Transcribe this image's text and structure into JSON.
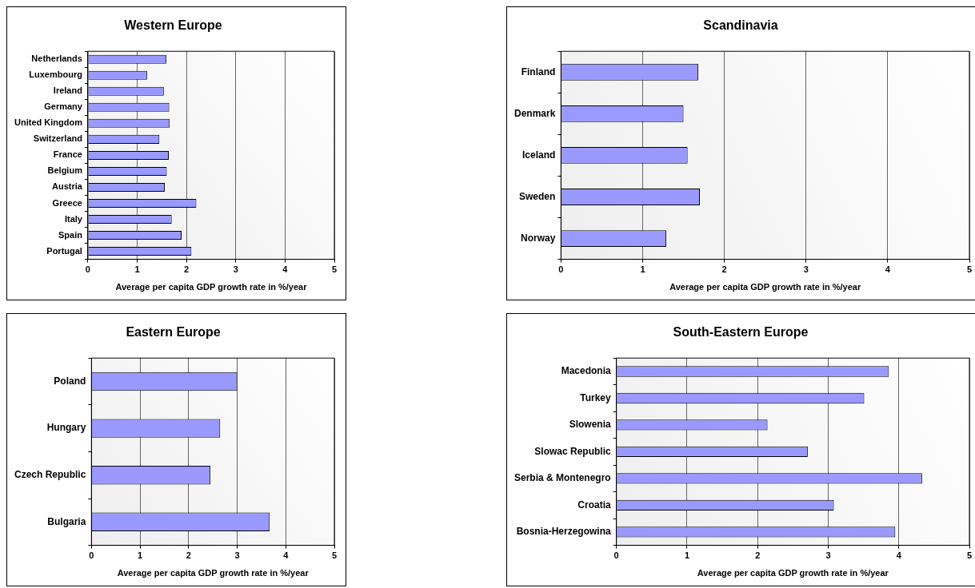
{
  "chart_data": [
    {
      "type": "bar",
      "orientation": "horizontal",
      "title": "Western Europe",
      "xlabel": "Average per capita GDP growth rate in %/year",
      "categories": [
        "Netherlands",
        "Luxembourg",
        "Ireland",
        "Germany",
        "United Kingdom",
        "Switzerland",
        "France",
        "Belgium",
        "Austria",
        "Greece",
        "Italy",
        "Spain",
        "Portugal"
      ],
      "values": [
        1.59,
        1.2,
        1.54,
        1.65,
        1.66,
        1.45,
        1.64,
        1.6,
        1.56,
        2.2,
        1.7,
        1.9,
        2.1
      ],
      "color": "#9999ff",
      "xlim": [
        0,
        5
      ],
      "xticks": [
        0,
        1,
        2,
        3,
        4,
        5
      ],
      "grid": "x",
      "legend": false
    },
    {
      "type": "bar",
      "orientation": "horizontal",
      "title": "Scandinavia",
      "xlabel": "Average per capita GDP growth rate in %/year",
      "categories": [
        "Finland",
        "Denmark",
        "Iceland",
        "Sweden",
        "Norway"
      ],
      "values": [
        1.68,
        1.5,
        1.55,
        1.7,
        1.29
      ],
      "color": "#9999ff",
      "xlim": [
        0,
        5
      ],
      "xticks": [
        0,
        1,
        2,
        3,
        4,
        5
      ],
      "grid": "x",
      "legend": false
    },
    {
      "type": "bar",
      "orientation": "horizontal",
      "title": "Eastern Europe",
      "xlabel": "Average per capita GDP growth rate in %/year",
      "categories": [
        "Poland",
        "Hungary",
        "Czech Republic",
        "Bulgaria"
      ],
      "values": [
        3.0,
        2.65,
        2.45,
        3.67
      ],
      "color": "#9999ff",
      "xlim": [
        0,
        5
      ],
      "xticks": [
        0,
        1,
        2,
        3,
        4,
        5
      ],
      "grid": "x",
      "legend": false
    },
    {
      "type": "bar",
      "orientation": "horizontal",
      "title": "South-Eastern Europe",
      "xlabel": "Average per capita GDP growth rate in %/year",
      "categories": [
        "Macedonia",
        "Turkey",
        "Slowenia",
        "Slowac Republic",
        "Serbia & Montenegro",
        "Croatia",
        "Bosnia-Herzegowina"
      ],
      "values": [
        3.86,
        3.51,
        2.14,
        2.71,
        4.33,
        3.08,
        3.95
      ],
      "color": "#9999ff",
      "xlim": [
        0,
        5
      ],
      "xticks": [
        0,
        1,
        2,
        3,
        4,
        5
      ],
      "grid": "x",
      "legend": false
    }
  ]
}
